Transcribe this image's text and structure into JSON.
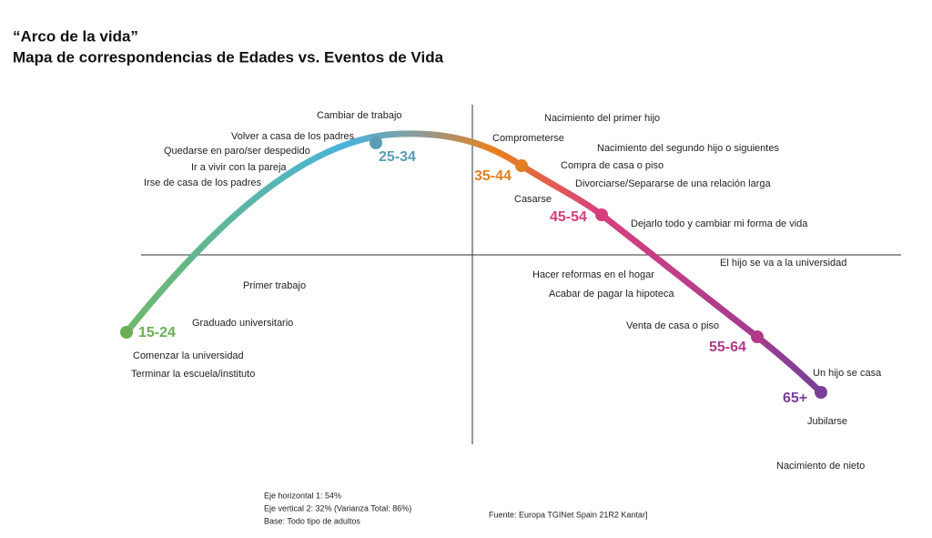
{
  "header": {
    "title": "“Arco de la vida”",
    "subtitle": "Mapa de correspondencias de Edades vs. Eventos de Vida"
  },
  "age_groups": [
    {
      "label": "15-24",
      "color": "#6aaf55"
    },
    {
      "label": "25-34",
      "color": "#5b9db5"
    },
    {
      "label": "35-44",
      "color": "#e07f22"
    },
    {
      "label": "45-54",
      "color": "#d43d7c"
    },
    {
      "label": "55-64",
      "color": "#b03a88"
    },
    {
      "label": "65+",
      "color": "#7a3e96"
    }
  ],
  "events": [
    "Cambiar de trabajo",
    "Volver a casa de los padres",
    "Quedarse en paro/ser despedido",
    "Ir a vivir con la pareja",
    "Irse de casa de los padres",
    "Nacimiento del primer hijo",
    "Comprometerse",
    "Nacimiento del segundo hijo o siguientes",
    "Compra de casa o piso",
    "Divorciarse/Separarse de una relación larga",
    "Casarse",
    "Dejarlo todo y cambiar mi forma de vida",
    "El hijo se va a la universidad",
    "Hacer reformas en el hogar",
    "Primer trabajo",
    "Acabar de pagar la hipoteca",
    "Graduado universitario",
    "Venta de casa o piso",
    "Comenzar la universidad",
    "Terminar la escuela/instituto",
    "Un hijo se casa",
    "Jubilarse",
    "Nacimiento de nieto"
  ],
  "notes": [
    "Eje horizontal 1: 54%",
    "Eje vertical 2: 32% (Varianza Total: 86%)",
    "Base: Todo tipo de adultos"
  ],
  "source": "Fuente: Europa TGINet  Spain 21R2 Kantar]"
}
